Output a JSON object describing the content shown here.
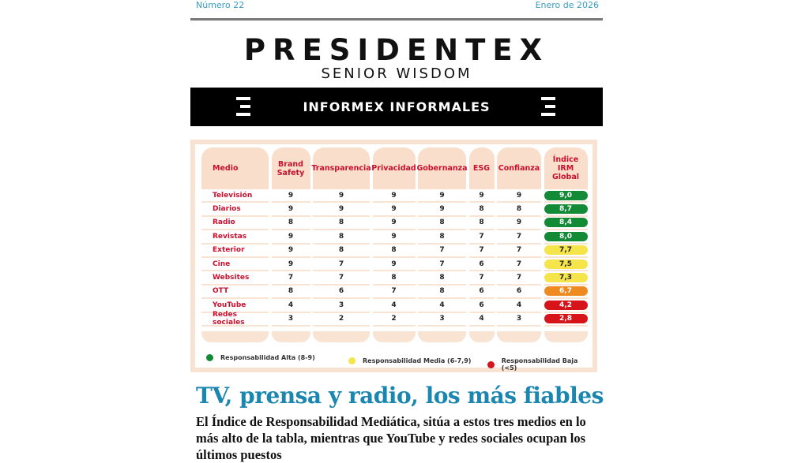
{
  "header": {
    "issue": "Número 22",
    "date": "Enero de 2026"
  },
  "logo": {
    "name": "PRESIDENTEX",
    "tagline": "SENIOR WISDOM"
  },
  "section": {
    "title": "INFORMEX INFORMALES"
  },
  "table": {
    "columns": [
      "Medio",
      "Brand Safety",
      "Transparencia",
      "Privacidad",
      "Gobernanza",
      "ESG",
      "Confianza",
      "Índice IRM Global"
    ],
    "rows": [
      {
        "medio": "Televisión",
        "values": [
          "9",
          "9",
          "9",
          "9",
          "9",
          "9"
        ],
        "irm": "9,0",
        "level": "alta"
      },
      {
        "medio": "Diarios",
        "values": [
          "9",
          "9",
          "9",
          "9",
          "8",
          "8"
        ],
        "irm": "8,7",
        "level": "alta"
      },
      {
        "medio": "Radio",
        "values": [
          "8",
          "8",
          "9",
          "8",
          "8",
          "9"
        ],
        "irm": "8,4",
        "level": "alta"
      },
      {
        "medio": "Revistas",
        "values": [
          "9",
          "8",
          "9",
          "8",
          "7",
          "7"
        ],
        "irm": "8,0",
        "level": "alta"
      },
      {
        "medio": "Exterior",
        "values": [
          "9",
          "8",
          "8",
          "7",
          "7",
          "7"
        ],
        "irm": "7,7",
        "level": "media"
      },
      {
        "medio": "Cine",
        "values": [
          "9",
          "7",
          "9",
          "7",
          "6",
          "7"
        ],
        "irm": "7,5",
        "level": "media"
      },
      {
        "medio": "Websites",
        "values": [
          "7",
          "7",
          "8",
          "8",
          "7",
          "7"
        ],
        "irm": "7,3",
        "level": "media"
      },
      {
        "medio": "OTT",
        "values": [
          "8",
          "6",
          "7",
          "8",
          "6",
          "6"
        ],
        "irm": "6,7",
        "level": "naranja"
      },
      {
        "medio": "YouTube",
        "values": [
          "4",
          "3",
          "4",
          "4",
          "6",
          "4"
        ],
        "irm": "4,2",
        "level": "baja"
      },
      {
        "medio": "Redes sociales",
        "values": [
          "3",
          "2",
          "2",
          "3",
          "4",
          "3"
        ],
        "irm": "2,8",
        "level": "baja"
      }
    ],
    "colors": {
      "alta": "#138a36",
      "media": "#f5e44a",
      "naranja": "#ee8a1f",
      "baja": "#d7141a"
    },
    "legend": [
      {
        "label": "Responsabilidad Alta (8-9)",
        "color": "#138a36"
      },
      {
        "label": "Responsabilidad Media (6-7,9)",
        "color": "#f5e44a"
      },
      {
        "label": "Responsabilidad Baja (<5)",
        "color": "#d7141a"
      }
    ]
  },
  "article": {
    "title": "TV, prensa y radio, los más fiables",
    "deck": "El Índice de Responsabilidad Mediática, sitúa a estos tres medios en lo más alto de la tabla, mientras que YouTube y redes sociales ocupan los últimos puestos"
  }
}
